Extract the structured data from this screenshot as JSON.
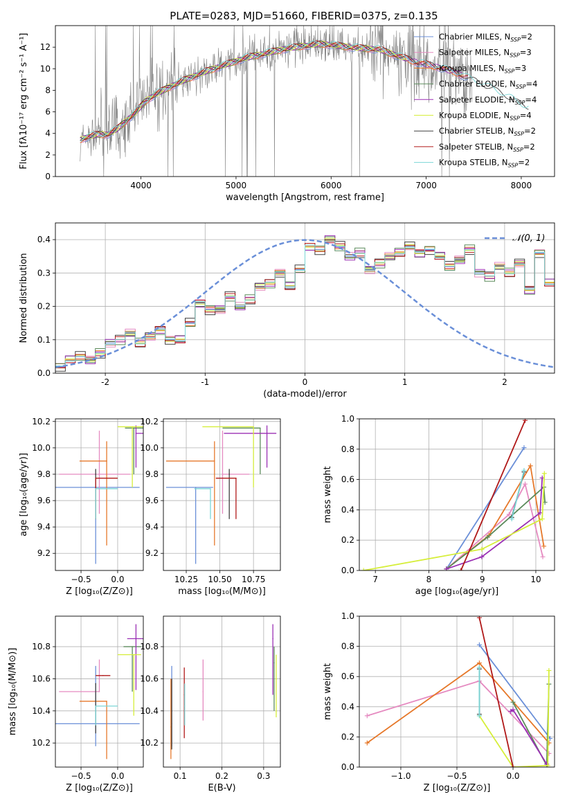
{
  "figure": {
    "title": "PLATE=0283, MJD=51660, FIBERID=0375, z=0.135"
  },
  "colors": {
    "Chabrier MILES": "#6a8fd8",
    "Salpeter MILES": "#e58ac0",
    "Kroupa MILES": "#e6782a",
    "Chabrier ELODIE": "#5a8a5a",
    "Salpeter ELODIE": "#9a2fb4",
    "Kroupa ELODIE": "#d6ee3a",
    "Chabrier STELIB": "#404040",
    "Salpeter STELIB": "#b01818",
    "Kroupa STELIB": "#7ad6d6",
    "data": "#808080",
    "normal": "#6a8fd8"
  },
  "chart_data": [
    {
      "id": "spectrum",
      "type": "line",
      "title": "PLATE=0283, MJD=51660, FIBERID=0375, z=0.135",
      "xlabel": "wavelength [Angstrom, rest frame]",
      "ylabel": "Flux [fλ10⁻¹⁷ erg cm⁻² s⁻¹ A⁻¹]",
      "xlim": [
        3100,
        8350
      ],
      "ylim": [
        0,
        14
      ],
      "xticks": [
        4000,
        5000,
        6000,
        7000,
        8000
      ],
      "yticks": [
        0,
        2,
        4,
        6,
        8,
        10,
        12
      ],
      "grid": false,
      "legend_position": "top-right",
      "legend": [
        "Chabrier MILES, N_SSP=2",
        "Salpeter MILES, N_SSP=3",
        "Kroupa MILES, N_SSP=3",
        "Chabrier ELODIE, N_SSP=4",
        "Salpeter ELODIE, N_SSP=4",
        "Kroupa ELODIE, N_SSP=4",
        "Chabrier STELIB, N_SSP=2",
        "Salpeter STELIB, N_SSP=2",
        "Kroupa STELIB, N_SSP=2"
      ],
      "continuum": {
        "x": [
          3350,
          3450,
          3550,
          3650,
          3750,
          3850,
          3950,
          4050,
          4150,
          4300,
          4500,
          4700,
          4900,
          5100,
          5300,
          5500,
          5700,
          5900,
          6100,
          6300,
          6500,
          6700,
          6900,
          7100,
          7300,
          7500,
          7700,
          7900,
          8050
        ],
        "y": [
          3.4,
          3.7,
          3.9,
          3.9,
          4.4,
          5.2,
          6.0,
          7.0,
          7.6,
          8.3,
          9.1,
          9.8,
          10.4,
          11.0,
          11.4,
          11.8,
          12.1,
          12.3,
          12.1,
          11.9,
          11.8,
          11.2,
          10.6,
          10.2,
          9.7,
          8.9,
          8.1,
          7.2,
          6.4
        ]
      }
    },
    {
      "id": "residuals",
      "type": "histogram",
      "xlabel": "(data-model)/error",
      "ylabel": "Normed distribution",
      "xlim": [
        -2.5,
        2.5
      ],
      "ylim": [
        0,
        0.45
      ],
      "xticks": [
        -2,
        -1,
        0,
        1,
        2
      ],
      "yticks": [
        0.0,
        0.1,
        0.2,
        0.3,
        0.4
      ],
      "grid": true,
      "legend_position": "top-right",
      "legend": [
        "𝒩(0, 1)"
      ],
      "bin_start": -2.5,
      "bin_width": 0.1,
      "bin_counts": [
        0.02,
        0.04,
        0.05,
        0.04,
        0.06,
        0.09,
        0.1,
        0.12,
        0.09,
        0.11,
        0.13,
        0.1,
        0.1,
        0.15,
        0.21,
        0.19,
        0.19,
        0.23,
        0.2,
        0.22,
        0.26,
        0.27,
        0.3,
        0.26,
        0.31,
        0.38,
        0.37,
        0.4,
        0.38,
        0.35,
        0.36,
        0.31,
        0.33,
        0.35,
        0.36,
        0.38,
        0.36,
        0.37,
        0.35,
        0.32,
        0.34,
        0.37,
        0.3,
        0.29,
        0.32,
        0.3,
        0.33,
        0.25,
        0.36,
        0.27,
        0.22,
        0.26,
        0.2,
        0.17,
        0.18,
        0.2,
        0.21,
        0.17,
        0.19,
        0.16,
        0.15,
        0.16,
        0.12,
        0.16,
        0.14,
        0.12,
        0.11,
        0.12,
        0.09,
        0.08,
        0.08,
        0.09,
        0.08,
        0.06,
        0.05,
        0.04,
        0.06,
        0.05,
        0.03,
        0.04,
        0.03
      ],
      "offsets": [
        0.0,
        0.012,
        -0.008,
        0.015,
        -0.012,
        0.005,
        -0.015,
        0.01,
        -0.004
      ]
    },
    {
      "id": "age-vs-z",
      "type": "errorbar",
      "xlabel": "Z [log₁₀(Z/Z⊙)]",
      "ylabel": "age  [log₁₀(age/yr)]",
      "xlim": [
        -0.85,
        0.35
      ],
      "ylim": [
        9.07,
        10.22
      ],
      "xticks": [
        -0.5,
        0.0
      ],
      "xtick_labels": [
        "−0.5",
        "0.0"
      ],
      "yticks": [
        9.2,
        9.4,
        9.6,
        9.8,
        10.0,
        10.2
      ],
      "grid": true,
      "points": [
        {
          "model": "Chabrier MILES",
          "x": -0.3,
          "y": 9.7,
          "xerr": [
            0.55,
            0.6
          ],
          "yerr": [
            0.58,
            0.0
          ]
        },
        {
          "model": "Salpeter MILES",
          "x": -0.25,
          "y": 9.8,
          "xerr": [
            0.55,
            0.42
          ],
          "yerr": [
            0.3,
            0.33
          ]
        },
        {
          "model": "Kroupa MILES",
          "x": -0.15,
          "y": 9.9,
          "xerr": [
            0.37,
            0.0
          ],
          "yerr": [
            0.64,
            0.15
          ]
        },
        {
          "model": "Chabrier ELODIE",
          "x": 0.22,
          "y": 10.15,
          "xerr": [
            0.12,
            0.13
          ],
          "yerr": [
            0.35,
            0.0
          ]
        },
        {
          "model": "Salpeter ELODIE",
          "x": 0.25,
          "y": 10.11,
          "xerr": [
            0.0,
            0.12
          ],
          "yerr": [
            0.26,
            0.06
          ]
        },
        {
          "model": "Kroupa ELODIE",
          "x": 0.2,
          "y": 10.16,
          "xerr": [
            0.2,
            0.15
          ],
          "yerr": [
            0.46,
            0.0
          ]
        },
        {
          "model": "Chabrier STELIB",
          "x": -0.3,
          "y": 9.8,
          "xerr": [
            0.0,
            0.0
          ],
          "yerr": [
            0.34,
            0.04
          ]
        },
        {
          "model": "Salpeter STELIB",
          "x": -0.3,
          "y": 9.77,
          "xerr": [
            0.0,
            0.3
          ],
          "yerr": [
            0.31,
            0.0
          ]
        },
        {
          "model": "Kroupa STELIB",
          "x": -0.3,
          "y": 9.69,
          "xerr": [
            0.0,
            0.3
          ],
          "yerr": [
            0.23,
            0.0
          ]
        }
      ]
    },
    {
      "id": "age-vs-mass",
      "type": "errorbar",
      "xlabel": "mass [log₁₀(M/M⊙)]",
      "ylabel": "",
      "xlim": [
        10.08,
        10.95
      ],
      "ylim": [
        9.07,
        10.22
      ],
      "xticks": [
        10.25,
        10.5,
        10.75
      ],
      "xtick_labels": [
        "10.25",
        "10.50",
        "10.75"
      ],
      "yticks": [
        9.2,
        9.4,
        9.6,
        9.8,
        10.0,
        10.2
      ],
      "grid": true,
      "points": [
        {
          "model": "Chabrier MILES",
          "x": 10.32,
          "y": 9.7,
          "xerr": [
            0.22,
            0.13
          ],
          "yerr": [
            0.58,
            0.0
          ]
        },
        {
          "model": "Salpeter MILES",
          "x": 10.52,
          "y": 9.8,
          "xerr": [
            0.0,
            0.2
          ],
          "yerr": [
            0.3,
            0.33
          ]
        },
        {
          "model": "Kroupa MILES",
          "x": 10.46,
          "y": 9.9,
          "xerr": [
            0.36,
            0.0
          ],
          "yerr": [
            0.64,
            0.15
          ]
        },
        {
          "model": "Chabrier ELODIE",
          "x": 10.8,
          "y": 10.15,
          "xerr": [
            0.28,
            0.0
          ],
          "yerr": [
            0.35,
            0.0
          ]
        },
        {
          "model": "Salpeter ELODIE",
          "x": 10.85,
          "y": 10.11,
          "xerr": [
            0.32,
            0.07
          ],
          "yerr": [
            0.26,
            0.06
          ]
        },
        {
          "model": "Kroupa ELODIE",
          "x": 10.75,
          "y": 10.16,
          "xerr": [
            0.38,
            0.0
          ],
          "yerr": [
            0.46,
            0.0
          ]
        },
        {
          "model": "Chabrier STELIB",
          "x": 10.57,
          "y": 9.8,
          "xerr": [
            0.0,
            0.0
          ],
          "yerr": [
            0.34,
            0.04
          ]
        },
        {
          "model": "Salpeter STELIB",
          "x": 10.62,
          "y": 9.77,
          "xerr": [
            0.15,
            0.0
          ],
          "yerr": [
            0.31,
            0.0
          ]
        },
        {
          "model": "Kroupa STELIB",
          "x": 10.43,
          "y": 9.69,
          "xerr": [
            0.12,
            0.0
          ],
          "yerr": [
            0.23,
            0.0
          ]
        }
      ]
    },
    {
      "id": "mass-weight-vs-age",
      "type": "line",
      "xlabel": "age  [log₁₀(age/yr)]",
      "ylabel": "mass weight",
      "xlim": [
        6.7,
        10.35
      ],
      "ylim": [
        0,
        1
      ],
      "xticks": [
        7,
        8,
        9,
        10
      ],
      "yticks": [
        0.0,
        0.2,
        0.4,
        0.6,
        0.8,
        1.0
      ],
      "grid": true,
      "series": [
        {
          "model": "Chabrier MILES",
          "x": [
            8.33,
            9.78
          ],
          "y": [
            0.01,
            0.81
          ]
        },
        {
          "model": "Salpeter MILES",
          "x": [
            8.33,
            9.5,
            9.8,
            10.13
          ],
          "y": [
            0.01,
            0.37,
            0.57,
            0.09
          ]
        },
        {
          "model": "Kroupa MILES",
          "x": [
            8.33,
            9.12,
            9.9,
            10.15
          ],
          "y": [
            0.01,
            0.23,
            0.69,
            0.16
          ]
        },
        {
          "model": "Chabrier ELODIE",
          "x": [
            8.33,
            9.1,
            10.15,
            10.17
          ],
          "y": [
            0.01,
            0.22,
            0.55,
            0.45
          ]
        },
        {
          "model": "Salpeter ELODIE",
          "x": [
            8.33,
            8.99,
            10.08,
            10.12
          ],
          "y": [
            0.01,
            0.09,
            0.38,
            0.61
          ]
        },
        {
          "model": "Kroupa ELODIE",
          "x": [
            6.78,
            8.99,
            10.12,
            10.16
          ],
          "y": [
            0.0,
            0.14,
            0.34,
            0.64
          ]
        },
        {
          "model": "Chabrier STELIB",
          "x": [
            9.55,
            9.78
          ],
          "y": [
            0.35,
            0.65
          ]
        },
        {
          "model": "Salpeter STELIB",
          "x": [
            8.6,
            9.8
          ],
          "y": [
            0.0,
            0.99
          ]
        },
        {
          "model": "Kroupa STELIB",
          "x": [
            9.55,
            9.78
          ],
          "y": [
            0.34,
            0.66
          ]
        }
      ]
    },
    {
      "id": "mass-vs-z",
      "type": "errorbar",
      "xlabel": "Z [log₁₀(Z/Z⊙)]",
      "ylabel": "mass [log₁₀(M/M⊙)]",
      "xlim": [
        -0.85,
        0.35
      ],
      "ylim": [
        10.05,
        10.99
      ],
      "xticks": [
        -0.5,
        0.0
      ],
      "xtick_labels": [
        "−0.5",
        "0.0"
      ],
      "yticks": [
        10.2,
        10.4,
        10.6,
        10.8
      ],
      "grid": true,
      "points": [
        {
          "model": "Chabrier MILES",
          "x": -0.3,
          "y": 10.32,
          "xerr": [
            0.55,
            0.6
          ],
          "yerr": [
            0.14,
            0.36
          ]
        },
        {
          "model": "Salpeter MILES",
          "x": -0.25,
          "y": 10.52,
          "xerr": [
            0.55,
            0.0
          ],
          "yerr": [
            0.0,
            0.2
          ]
        },
        {
          "model": "Kroupa MILES",
          "x": -0.15,
          "y": 10.46,
          "xerr": [
            0.37,
            0.0
          ],
          "yerr": [
            0.36,
            0.0
          ]
        },
        {
          "model": "Chabrier ELODIE",
          "x": 0.2,
          "y": 10.8,
          "xerr": [
            0.12,
            0.12
          ],
          "yerr": [
            0.28,
            0.0
          ]
        },
        {
          "model": "Salpeter ELODIE",
          "x": 0.25,
          "y": 10.85,
          "xerr": [
            0.12,
            0.1
          ],
          "yerr": [
            0.32,
            0.09
          ]
        },
        {
          "model": "Kroupa ELODIE",
          "x": 0.22,
          "y": 10.75,
          "xerr": [
            0.22,
            0.1
          ],
          "yerr": [
            0.38,
            0.0
          ]
        },
        {
          "model": "Chabrier STELIB",
          "x": -0.3,
          "y": 10.57,
          "xerr": [
            0.0,
            0.0
          ],
          "yerr": [
            0.31,
            0.0
          ]
        },
        {
          "model": "Salpeter STELIB",
          "x": -0.2,
          "y": 10.62,
          "xerr": [
            0.1,
            0.1
          ],
          "yerr": [
            0.0,
            0.0
          ]
        },
        {
          "model": "Kroupa STELIB",
          "x": -0.3,
          "y": 10.43,
          "xerr": [
            0.0,
            0.3
          ],
          "yerr": [
            0.12,
            0.0
          ]
        }
      ]
    },
    {
      "id": "mass-vs-ebv",
      "type": "errorbar",
      "xlabel": "E(B-V)",
      "ylabel": "",
      "xlim": [
        0.06,
        0.34
      ],
      "ylim": [
        10.05,
        10.99
      ],
      "xticks": [
        0.1,
        0.2,
        0.3
      ],
      "xtick_labels": [
        "0.1",
        "0.2",
        "0.3"
      ],
      "yticks": [
        10.2,
        10.4,
        10.6,
        10.8
      ],
      "grid": true,
      "points": [
        {
          "model": "Chabrier MILES",
          "x": 0.08,
          "y": 10.32,
          "yerr": [
            0.14,
            0.36
          ]
        },
        {
          "model": "Salpeter MILES",
          "x": 0.155,
          "y": 10.52,
          "yerr": [
            0.18,
            0.2
          ]
        },
        {
          "model": "Kroupa MILES",
          "x": 0.078,
          "y": 10.3,
          "yerr": [
            0.2,
            0.3
          ]
        },
        {
          "model": "Chabrier ELODIE",
          "x": 0.325,
          "y": 10.7,
          "yerr": [
            0.3,
            0.1
          ]
        },
        {
          "model": "Salpeter ELODIE",
          "x": 0.322,
          "y": 10.85,
          "yerr": [
            0.35,
            0.09
          ]
        },
        {
          "model": "Kroupa ELODIE",
          "x": 0.33,
          "y": 10.6,
          "yerr": [
            0.24,
            0.15
          ]
        },
        {
          "model": "Chabrier STELIB",
          "x": 0.08,
          "y": 10.4,
          "yerr": [
            0.24,
            0.2
          ]
        },
        {
          "model": "Salpeter STELIB",
          "x": 0.11,
          "y": 10.5,
          "yerr": [
            0.27,
            0.17
          ]
        },
        {
          "model": "Kroupa STELIB",
          "x": 0.111,
          "y": 10.43,
          "yerr": [
            0.12,
            0.14
          ]
        }
      ]
    },
    {
      "id": "mass-weight-vs-z",
      "type": "line",
      "xlabel": "Z [log₁₀(Z/Z⊙)]",
      "ylabel": "mass weight",
      "xlim": [
        -1.37,
        0.37
      ],
      "ylim": [
        0,
        1
      ],
      "xticks": [
        -1.0,
        -0.5,
        0.0
      ],
      "xtick_labels": [
        "−1.0",
        "−0.5",
        "0.0"
      ],
      "yticks": [
        0.0,
        0.2,
        0.4,
        0.6,
        0.8,
        1.0
      ],
      "grid": true,
      "series": [
        {
          "model": "Chabrier MILES",
          "x": [
            -0.3,
            0.33
          ],
          "y": [
            0.81,
            0.19
          ]
        },
        {
          "model": "Salpeter MILES",
          "x": [
            -1.3,
            -0.3,
            0.32
          ],
          "y": [
            0.34,
            0.57,
            0.09
          ]
        },
        {
          "model": "Kroupa MILES",
          "x": [
            -1.3,
            -0.3,
            0.32
          ],
          "y": [
            0.16,
            0.69,
            0.16
          ]
        },
        {
          "model": "Chabrier ELODIE",
          "x": [
            0.0,
            0.3,
            0.32
          ],
          "y": [
            0.43,
            0.01,
            0.55
          ]
        },
        {
          "model": "Salpeter ELODIE",
          "x": [
            -0.02,
            0.0,
            0.3
          ],
          "y": [
            0.37,
            0.38,
            0.02
          ]
        },
        {
          "model": "Kroupa ELODIE",
          "x": [
            -0.3,
            0.0,
            0.31,
            0.32
          ],
          "y": [
            0.34,
            0.0,
            0.01,
            0.64
          ]
        },
        {
          "model": "Chabrier STELIB",
          "x": [
            -0.3,
            -0.3
          ],
          "y": [
            0.35,
            0.65
          ]
        },
        {
          "model": "Salpeter STELIB",
          "x": [
            -0.3,
            0.0
          ],
          "y": [
            0.99,
            0.0
          ]
        },
        {
          "model": "Kroupa STELIB",
          "x": [
            -0.3,
            -0.3
          ],
          "y": [
            0.34,
            0.66
          ]
        }
      ]
    }
  ]
}
